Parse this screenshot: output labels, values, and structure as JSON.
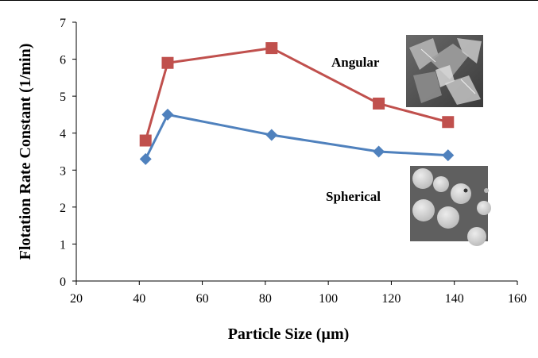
{
  "chart_data": {
    "type": "line",
    "xlabel": "Particle Size (µm)",
    "ylabel": "Flotation Rate Constant (1/min)",
    "xlim": [
      20,
      160
    ],
    "ylim": [
      0,
      7
    ],
    "xticks": [
      20,
      40,
      60,
      80,
      100,
      120,
      140,
      160
    ],
    "yticks": [
      0,
      1,
      2,
      3,
      4,
      5,
      6,
      7
    ],
    "grid": false,
    "legend": "none",
    "series": [
      {
        "name": "Angular",
        "color": "#C0504D",
        "marker": "square",
        "x": [
          42,
          49,
          82,
          116,
          138
        ],
        "y": [
          3.8,
          5.9,
          6.3,
          4.8,
          4.3
        ]
      },
      {
        "name": "Spherical",
        "color": "#4F81BD",
        "marker": "diamond",
        "x": [
          42,
          49,
          82,
          116,
          138
        ],
        "y": [
          3.3,
          4.5,
          3.95,
          3.5,
          3.4
        ]
      }
    ],
    "annotations": [
      "Angular",
      "Spherical"
    ],
    "images": [
      "angular-particle-micrograph",
      "spherical-particle-micrograph"
    ]
  }
}
